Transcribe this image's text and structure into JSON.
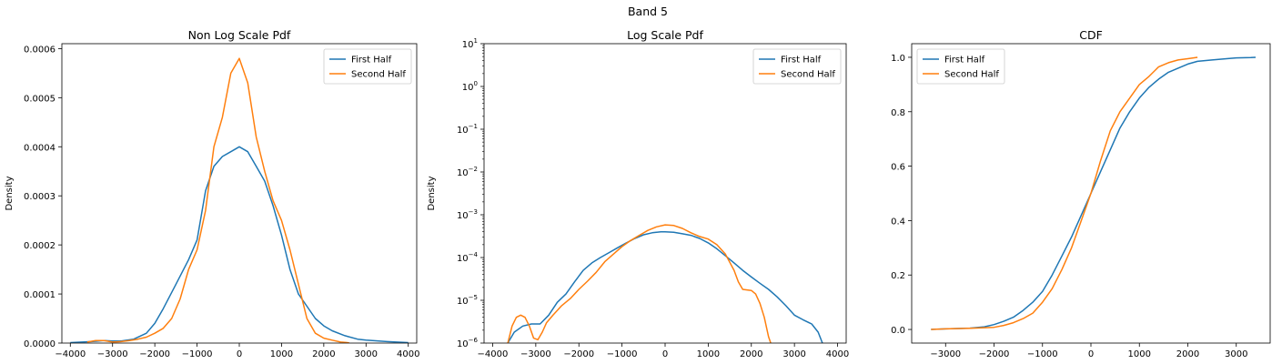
{
  "figure": {
    "suptitle": "Band 5"
  },
  "colors": {
    "first_half": "#1f77b4",
    "second_half": "#ff7f0e"
  },
  "chart_data": [
    {
      "type": "line",
      "title": "Non Log Scale Pdf",
      "xlabel": "",
      "ylabel": "Density",
      "xlim": [
        -4200,
        4200
      ],
      "ylim": [
        0,
        0.00061
      ],
      "yscale": "linear",
      "xticks": [
        -4000,
        -3000,
        -2000,
        -1000,
        0,
        1000,
        2000,
        3000,
        4000
      ],
      "yticks": [
        0,
        0.0001,
        0.0002,
        0.0003,
        0.0004,
        0.0005,
        0.0006
      ],
      "xtick_labels": [
        "−4000",
        "−3000",
        "−2000",
        "−1000",
        "0",
        "1000",
        "2000",
        "3000",
        "4000"
      ],
      "ytick_labels": [
        "0.0000",
        "0.0001",
        "0.0002",
        "0.0003",
        "0.0004",
        "0.0005",
        "0.0006"
      ],
      "legend": "upper right",
      "grid": false,
      "series": [
        {
          "name": "First Half",
          "color": "#1f77b4",
          "x": [
            -4000,
            -3500,
            -3200,
            -3000,
            -2800,
            -2500,
            -2200,
            -2000,
            -1800,
            -1500,
            -1200,
            -1000,
            -800,
            -600,
            -400,
            -200,
            0,
            200,
            400,
            600,
            800,
            1000,
            1200,
            1400,
            1600,
            1800,
            2000,
            2200,
            2500,
            2800,
            3000,
            3500,
            4000
          ],
          "y": [
            1e-06,
            3e-06,
            5e-06,
            4e-06,
            4e-06,
            8e-06,
            2e-05,
            4e-05,
            7e-05,
            0.00012,
            0.00017,
            0.00021,
            0.00031,
            0.00036,
            0.00038,
            0.00039,
            0.0004,
            0.00039,
            0.00036,
            0.00033,
            0.00028,
            0.00022,
            0.00015,
            0.0001,
            7.5e-05,
            5e-05,
            3.5e-05,
            2.5e-05,
            1.5e-05,
            8e-06,
            6e-06,
            3e-06,
            1e-06
          ]
        },
        {
          "name": "Second Half",
          "color": "#ff7f0e",
          "x": [
            -3600,
            -3400,
            -3200,
            -3000,
            -2800,
            -2600,
            -2400,
            -2200,
            -2000,
            -1800,
            -1600,
            -1400,
            -1200,
            -1000,
            -800,
            -600,
            -400,
            -200,
            0,
            200,
            400,
            600,
            800,
            1000,
            1200,
            1400,
            1600,
            1800,
            2000,
            2200,
            2400,
            2600
          ],
          "y": [
            2e-06,
            5e-06,
            5e-06,
            2e-06,
            3e-06,
            5e-06,
            8e-06,
            1.2e-05,
            2e-05,
            3e-05,
            5e-05,
            9e-05,
            0.00015,
            0.00019,
            0.00027,
            0.0004,
            0.00046,
            0.00055,
            0.00058,
            0.00053,
            0.00042,
            0.00035,
            0.00029,
            0.00025,
            0.00019,
            0.00012,
            5e-05,
            2e-05,
            1e-05,
            6e-06,
            2e-06,
            5e-07
          ]
        }
      ]
    },
    {
      "type": "line",
      "title": "Log Scale Pdf",
      "xlabel": "",
      "ylabel": "Density",
      "xlim": [
        -4200,
        4200
      ],
      "ylim": [
        1e-06,
        10
      ],
      "yscale": "log",
      "xticks": [
        -4000,
        -3000,
        -2000,
        -1000,
        0,
        1000,
        2000,
        3000,
        4000
      ],
      "yticks": [
        1e-06,
        1e-05,
        0.0001,
        0.001,
        0.01,
        0.1,
        1,
        10
      ],
      "xtick_labels": [
        "−4000",
        "−3000",
        "−2000",
        "−1000",
        "0",
        "1000",
        "2000",
        "3000",
        "4000"
      ],
      "ytick_bases": [
        "10",
        "10",
        "10",
        "10",
        "10",
        "10",
        "10",
        "10"
      ],
      "ytick_exponents": [
        "−6",
        "−5",
        "−4",
        "−3",
        "−2",
        "−1",
        "0",
        "1"
      ],
      "legend": "upper right",
      "grid": false,
      "series": [
        {
          "name": "First Half",
          "color": "#1f77b4",
          "x": [
            -3650,
            -3500,
            -3300,
            -3100,
            -2900,
            -2700,
            -2500,
            -2300,
            -2100,
            -1900,
            -1700,
            -1500,
            -1300,
            -1100,
            -900,
            -700,
            -500,
            -300,
            -100,
            0,
            200,
            400,
            600,
            800,
            1000,
            1200,
            1400,
            1600,
            1800,
            2000,
            2200,
            2400,
            2600,
            2800,
            3000,
            3200,
            3400,
            3550,
            3650
          ],
          "y": [
            1e-06,
            1.8e-06,
            2.5e-06,
            2.8e-06,
            2.8e-06,
            4.5e-06,
            9e-06,
            1.4e-05,
            2.7e-05,
            5e-05,
            7.5e-05,
            0.0001,
            0.00013,
            0.00017,
            0.00022,
            0.00028,
            0.00034,
            0.00038,
            0.0004,
            0.0004,
            0.00039,
            0.00036,
            0.00033,
            0.00028,
            0.00022,
            0.00016,
            0.00011,
            7.5e-05,
            5e-05,
            3.5e-05,
            2.5e-05,
            1.8e-05,
            1.2e-05,
            7.5e-06,
            4.5e-06,
            3.5e-06,
            2.8e-06,
            1.8e-06,
            1e-06
          ]
        },
        {
          "name": "Second Half",
          "color": "#ff7f0e",
          "x": [
            -3650,
            -3550,
            -3450,
            -3350,
            -3250,
            -3150,
            -3050,
            -2950,
            -2850,
            -2750,
            -2600,
            -2400,
            -2200,
            -2000,
            -1800,
            -1600,
            -1400,
            -1200,
            -1000,
            -800,
            -600,
            -400,
            -200,
            0,
            200,
            400,
            600,
            800,
            1000,
            1200,
            1400,
            1600,
            1700,
            1800,
            2000,
            2100,
            2200,
            2300,
            2400,
            2450
          ],
          "y": [
            1e-06,
            2.5e-06,
            4e-06,
            4.5e-06,
            4e-06,
            2.5e-06,
            1.3e-06,
            1.2e-06,
            1.8e-06,
            3e-06,
            4.5e-06,
            7.5e-06,
            1.1e-05,
            1.8e-05,
            2.8e-05,
            4.5e-05,
            8e-05,
            0.00012,
            0.00018,
            0.00025,
            0.00033,
            0.00043,
            0.00052,
            0.00058,
            0.00056,
            0.00048,
            0.00038,
            0.00031,
            0.00027,
            0.0002,
            0.00012,
            5e-05,
            2.7e-05,
            1.8e-05,
            1.7e-05,
            1.4e-05,
            8.5e-06,
            4e-06,
            1.4e-06,
            1e-06
          ]
        }
      ]
    },
    {
      "type": "line",
      "title": "CDF",
      "xlabel": "",
      "ylabel": "",
      "xlim": [
        -3700,
        3700
      ],
      "ylim": [
        -0.05,
        1.05
      ],
      "yscale": "linear",
      "xticks": [
        -3000,
        -2000,
        -1000,
        0,
        1000,
        2000,
        3000
      ],
      "yticks": [
        0,
        0.2,
        0.4,
        0.6,
        0.8,
        1.0
      ],
      "xtick_labels": [
        "−3000",
        "−2000",
        "−1000",
        "0",
        "1000",
        "2000",
        "3000"
      ],
      "ytick_labels": [
        "0.0",
        "0.2",
        "0.4",
        "0.6",
        "0.8",
        "1.0"
      ],
      "legend": "upper left",
      "grid": false,
      "series": [
        {
          "name": "First Half",
          "color": "#1f77b4",
          "x": [
            -3300,
            -3000,
            -2500,
            -2200,
            -2000,
            -1800,
            -1600,
            -1400,
            -1200,
            -1000,
            -800,
            -600,
            -400,
            -200,
            0,
            200,
            400,
            600,
            800,
            1000,
            1200,
            1400,
            1600,
            1800,
            2000,
            2200,
            2500,
            2800,
            3000,
            3300,
            3400
          ],
          "y": [
            0.0,
            0.002,
            0.005,
            0.01,
            0.018,
            0.03,
            0.045,
            0.07,
            0.1,
            0.14,
            0.2,
            0.27,
            0.34,
            0.42,
            0.5,
            0.58,
            0.66,
            0.74,
            0.8,
            0.85,
            0.89,
            0.92,
            0.945,
            0.96,
            0.975,
            0.985,
            0.99,
            0.995,
            0.998,
            0.999,
            1.0
          ]
        },
        {
          "name": "Second Half",
          "color": "#ff7f0e",
          "x": [
            -3300,
            -3000,
            -2500,
            -2000,
            -1800,
            -1600,
            -1400,
            -1200,
            -1000,
            -800,
            -600,
            -400,
            -200,
            0,
            200,
            400,
            600,
            800,
            1000,
            1200,
            1400,
            1600,
            1800,
            2000,
            2200
          ],
          "y": [
            0.0,
            0.002,
            0.004,
            0.008,
            0.015,
            0.025,
            0.04,
            0.06,
            0.1,
            0.15,
            0.22,
            0.3,
            0.4,
            0.5,
            0.62,
            0.73,
            0.8,
            0.85,
            0.9,
            0.93,
            0.965,
            0.98,
            0.99,
            0.995,
            1.0
          ]
        }
      ]
    }
  ]
}
